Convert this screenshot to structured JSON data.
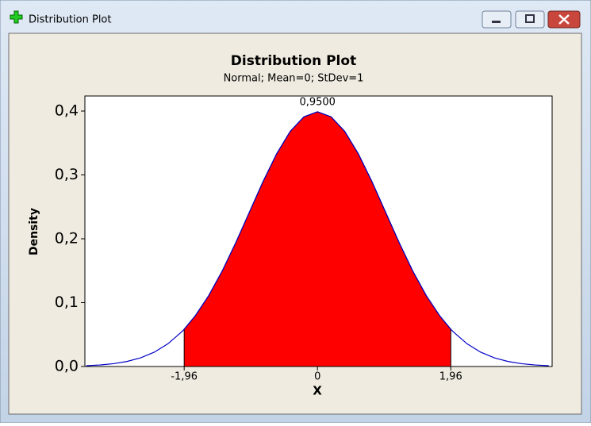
{
  "window": {
    "title": "Distribution Plot"
  },
  "chart_data": {
    "type": "area-density",
    "title": "Distribution Plot",
    "subtitle": "Normal; Mean=0; StDev=1",
    "xlabel": "X",
    "ylabel": "Density",
    "x": [
      -3.4,
      -3.2,
      -3.0,
      -2.8,
      -2.6,
      -2.4,
      -2.2,
      -2.0,
      -1.96,
      -1.8,
      -1.6,
      -1.4,
      -1.2,
      -1.0,
      -0.8,
      -0.6,
      -0.4,
      -0.2,
      0,
      0.2,
      0.4,
      0.6,
      0.8,
      1.0,
      1.2,
      1.4,
      1.6,
      1.8,
      1.96,
      2.0,
      2.2,
      2.4,
      2.6,
      2.8,
      3.0,
      3.2,
      3.4
    ],
    "values": [
      0.0012,
      0.0024,
      0.0044,
      0.0079,
      0.0136,
      0.0224,
      0.0355,
      0.054,
      0.0584,
      0.079,
      0.1109,
      0.1497,
      0.1942,
      0.242,
      0.2897,
      0.3332,
      0.3683,
      0.391,
      0.3989,
      0.391,
      0.3683,
      0.3332,
      0.2897,
      0.242,
      0.1942,
      0.1497,
      0.1109,
      0.079,
      0.0584,
      0.054,
      0.0355,
      0.0224,
      0.0136,
      0.0079,
      0.0044,
      0.0024,
      0.0012
    ],
    "color": "#0000c8",
    "shade_color": "#ff0000",
    "shade": [
      -1.96,
      1.96
    ],
    "annotation": {
      "value": 0.95,
      "label": "0,9500"
    },
    "xlim": [
      -3.42,
      3.45
    ],
    "ylim": [
      0,
      0.4236
    ],
    "xticks": [
      {
        "value": -1.96,
        "label": "-1,96"
      },
      0,
      {
        "value": 1.96,
        "label": "1,96"
      }
    ],
    "yticks": [
      {
        "value": 0,
        "label": "0,0"
      },
      {
        "value": 0.1,
        "label": "0,1"
      },
      {
        "value": 0.2,
        "label": "0,2"
      },
      {
        "value": 0.3,
        "label": "0,3"
      },
      {
        "value": 0.4,
        "label": "0,4"
      }
    ]
  }
}
